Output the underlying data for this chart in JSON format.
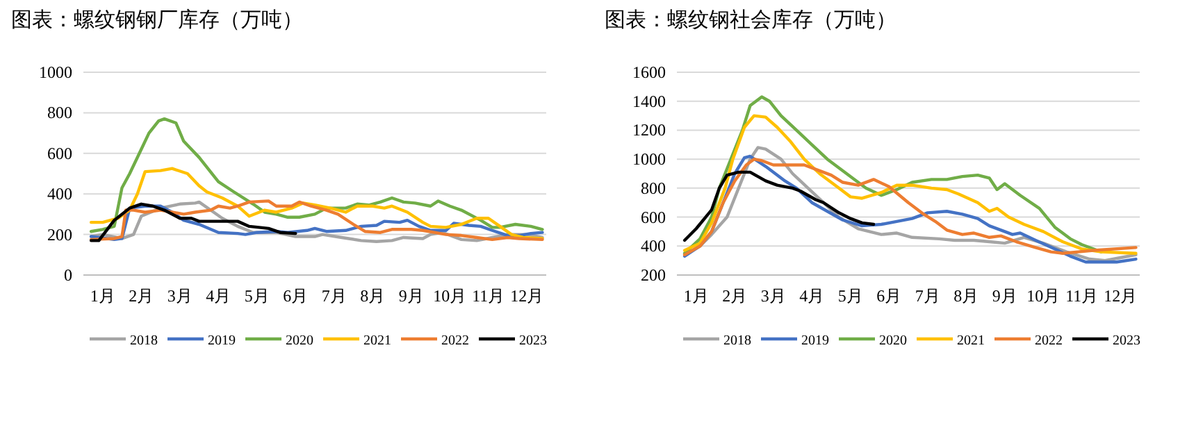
{
  "chart_data": [
    {
      "type": "line",
      "title": "图表：螺纹钢钢厂库存（万吨）",
      "xlim": [
        0,
        12
      ],
      "xticks": [
        {
          "value": 0.5,
          "label": "1月"
        },
        {
          "value": 1.5,
          "label": "2月"
        },
        {
          "value": 2.5,
          "label": "3月"
        },
        {
          "value": 3.5,
          "label": "4月"
        },
        {
          "value": 4.5,
          "label": "5月"
        },
        {
          "value": 5.5,
          "label": "6月"
        },
        {
          "value": 6.5,
          "label": "7月"
        },
        {
          "value": 7.5,
          "label": "8月"
        },
        {
          "value": 8.5,
          "label": "9月"
        },
        {
          "value": 9.5,
          "label": "10月"
        },
        {
          "value": 10.5,
          "label": "11月"
        },
        {
          "value": 11.5,
          "label": "12月"
        }
      ],
      "ylim": [
        0,
        1000
      ],
      "yticks": [
        0,
        200,
        400,
        600,
        800,
        1000
      ],
      "grid": "y",
      "legend": "bottom",
      "series": [
        {
          "name": "2018",
          "color": "#a5a5a5",
          "x": [
            0.2,
            0.5,
            1.0,
            1.3,
            1.5,
            2.0,
            2.5,
            2.9,
            3.0,
            3.3,
            3.6,
            4.0,
            4.4,
            5.0,
            5.5,
            6.0,
            6.2,
            6.7,
            7.2,
            7.6,
            8.0,
            8.3,
            8.8,
            9.0,
            9.3,
            9.8,
            10.2,
            10.6,
            11.0,
            11.5,
            11.9
          ],
          "values": [
            190,
            200,
            180,
            200,
            290,
            330,
            350,
            355,
            360,
            320,
            280,
            240,
            210,
            210,
            190,
            190,
            200,
            185,
            170,
            165,
            170,
            185,
            180,
            200,
            210,
            175,
            170,
            185,
            200,
            200,
            185
          ]
        },
        {
          "name": "2019",
          "color": "#4472c4",
          "x": [
            0.2,
            0.8,
            1.0,
            1.2,
            1.6,
            2.0,
            2.3,
            2.6,
            3.0,
            3.5,
            4.0,
            4.2,
            4.5,
            5.0,
            5.3,
            5.8,
            6.0,
            6.3,
            6.8,
            7.2,
            7.6,
            7.8,
            8.2,
            8.4,
            8.7,
            9.0,
            9.4,
            9.6,
            10.0,
            10.3,
            10.6,
            11.0,
            11.3,
            11.6,
            11.9
          ],
          "values": [
            190,
            175,
            180,
            330,
            340,
            340,
            310,
            270,
            250,
            210,
            205,
            200,
            210,
            215,
            210,
            220,
            230,
            215,
            220,
            240,
            245,
            265,
            260,
            270,
            240,
            220,
            220,
            255,
            245,
            240,
            220,
            195,
            195,
            205,
            210
          ]
        },
        {
          "name": "2020",
          "color": "#70ad47",
          "x": [
            0.2,
            0.5,
            0.8,
            1.0,
            1.2,
            1.5,
            1.7,
            1.95,
            2.1,
            2.4,
            2.6,
            3.0,
            3.5,
            3.9,
            4.4,
            4.7,
            5.0,
            5.3,
            5.6,
            6.0,
            6.3,
            6.8,
            7.1,
            7.4,
            7.7,
            8.0,
            8.3,
            8.6,
            9.0,
            9.2,
            9.5,
            9.8,
            10.3,
            10.6,
            10.8,
            11.2,
            11.6,
            11.9
          ],
          "values": [
            215,
            225,
            240,
            430,
            500,
            620,
            700,
            760,
            770,
            750,
            660,
            580,
            460,
            410,
            350,
            310,
            300,
            285,
            285,
            300,
            330,
            330,
            350,
            345,
            360,
            380,
            360,
            355,
            340,
            365,
            340,
            320,
            270,
            235,
            235,
            250,
            240,
            225
          ]
        },
        {
          "name": "2021",
          "color": "#ffc000",
          "x": [
            0.2,
            0.5,
            0.9,
            1.2,
            1.4,
            1.6,
            2.0,
            2.3,
            2.7,
            3.0,
            3.2,
            3.6,
            4.0,
            4.3,
            4.7,
            5.0,
            5.4,
            5.7,
            6.0,
            6.4,
            6.8,
            7.1,
            7.5,
            7.8,
            8.0,
            8.4,
            8.8,
            9.0,
            9.4,
            9.8,
            10.2,
            10.5,
            10.8,
            11.1,
            11.4,
            11.9
          ],
          "values": [
            260,
            260,
            280,
            320,
            400,
            510,
            515,
            525,
            500,
            440,
            410,
            380,
            340,
            290,
            320,
            310,
            330,
            355,
            345,
            330,
            310,
            340,
            340,
            330,
            340,
            310,
            260,
            240,
            235,
            250,
            280,
            280,
            240,
            200,
            185,
            180
          ]
        },
        {
          "name": "2022",
          "color": "#ed7d31",
          "x": [
            0.2,
            0.8,
            1.0,
            1.1,
            1.3,
            1.6,
            2.0,
            2.3,
            2.6,
            2.9,
            3.3,
            3.5,
            3.8,
            4.0,
            4.3,
            4.8,
            5.0,
            5.4,
            5.6,
            5.9,
            6.3,
            6.6,
            7.0,
            7.3,
            7.7,
            8.0,
            8.5,
            8.8,
            9.1,
            9.4,
            9.8,
            10.2,
            10.6,
            11.0,
            11.3,
            11.9
          ],
          "values": [
            175,
            180,
            190,
            320,
            320,
            310,
            320,
            310,
            300,
            310,
            320,
            340,
            330,
            340,
            360,
            365,
            340,
            340,
            360,
            340,
            320,
            300,
            250,
            215,
            210,
            225,
            225,
            220,
            210,
            200,
            195,
            185,
            175,
            185,
            180,
            175
          ]
        },
        {
          "name": "2023",
          "color": "#000000",
          "x": [
            0.2,
            0.4,
            0.8,
            1.2,
            1.5,
            1.8,
            2.1,
            2.5,
            2.8,
            3.0,
            3.5,
            4.0,
            4.3,
            4.8,
            5.1,
            5.5
          ],
          "values": [
            170,
            170,
            270,
            330,
            350,
            340,
            320,
            280,
            280,
            265,
            265,
            265,
            240,
            230,
            210,
            205
          ]
        }
      ]
    },
    {
      "type": "line",
      "title": "图表：螺纹钢社会库存（万吨）",
      "xlim": [
        0,
        12
      ],
      "xticks": [
        {
          "value": 0.5,
          "label": "1月"
        },
        {
          "value": 1.5,
          "label": "2月"
        },
        {
          "value": 2.5,
          "label": "3月"
        },
        {
          "value": 3.5,
          "label": "4月"
        },
        {
          "value": 4.5,
          "label": "5月"
        },
        {
          "value": 5.5,
          "label": "6月"
        },
        {
          "value": 6.5,
          "label": "7月"
        },
        {
          "value": 7.5,
          "label": "8月"
        },
        {
          "value": 8.5,
          "label": "9月"
        },
        {
          "value": 9.5,
          "label": "10月"
        },
        {
          "value": 10.5,
          "label": "11月"
        },
        {
          "value": 11.5,
          "label": "12月"
        }
      ],
      "ylim": [
        200,
        1600
      ],
      "yticks": [
        200,
        400,
        600,
        800,
        1000,
        1200,
        1400,
        1600
      ],
      "grid": "y",
      "legend": "bottom",
      "series": [
        {
          "name": "2018",
          "color": "#a5a5a5",
          "x": [
            0.2,
            0.6,
            0.9,
            1.3,
            1.6,
            1.9,
            2.1,
            2.3,
            2.7,
            3.0,
            3.4,
            3.8,
            4.2,
            4.7,
            5.3,
            5.7,
            6.1,
            6.8,
            7.2,
            7.7,
            8.1,
            8.5,
            9.0,
            9.5,
            10.1,
            10.7,
            11.1,
            11.5,
            11.9
          ],
          "values": [
            340,
            400,
            480,
            600,
            800,
            1000,
            1080,
            1070,
            1000,
            900,
            800,
            700,
            600,
            520,
            480,
            490,
            460,
            450,
            440,
            440,
            430,
            420,
            460,
            420,
            360,
            310,
            300,
            320,
            340
          ]
        },
        {
          "name": "2019",
          "color": "#4472c4",
          "x": [
            0.2,
            0.6,
            0.9,
            1.2,
            1.5,
            1.75,
            1.9,
            2.3,
            2.8,
            3.1,
            3.5,
            3.9,
            4.3,
            4.8,
            5.3,
            5.7,
            6.1,
            6.5,
            7.0,
            7.4,
            7.8,
            8.1,
            8.5,
            8.7,
            8.9,
            9.3,
            9.8,
            10.2,
            10.6,
            11.0,
            11.4,
            11.9
          ],
          "values": [
            330,
            400,
            500,
            700,
            900,
            1010,
            1020,
            950,
            850,
            800,
            700,
            640,
            580,
            540,
            550,
            570,
            590,
            630,
            640,
            620,
            590,
            540,
            500,
            480,
            490,
            440,
            380,
            330,
            290,
            290,
            290,
            310
          ]
        },
        {
          "name": "2020",
          "color": "#70ad47",
          "x": [
            0.2,
            0.6,
            0.9,
            1.1,
            1.4,
            1.7,
            1.9,
            2.2,
            2.4,
            2.7,
            3.1,
            3.5,
            3.9,
            4.4,
            4.9,
            5.3,
            5.7,
            6.1,
            6.6,
            7.0,
            7.4,
            7.8,
            8.1,
            8.3,
            8.5,
            8.9,
            9.4,
            9.8,
            10.2,
            10.5,
            11.0
          ],
          "values": [
            350,
            450,
            600,
            800,
            1000,
            1200,
            1370,
            1430,
            1400,
            1300,
            1200,
            1100,
            1000,
            900,
            800,
            750,
            790,
            840,
            860,
            860,
            880,
            890,
            870,
            790,
            830,
            750,
            660,
            530,
            450,
            410,
            360
          ]
        },
        {
          "name": "2021",
          "color": "#ffc000",
          "x": [
            0.2,
            0.6,
            0.9,
            1.25,
            1.45,
            1.75,
            2.0,
            2.3,
            2.6,
            2.95,
            3.3,
            3.7,
            4.2,
            4.5,
            4.8,
            5.3,
            5.7,
            6.1,
            6.6,
            7.0,
            7.3,
            7.8,
            8.1,
            8.3,
            8.6,
            9.0,
            9.5,
            10.0,
            10.5,
            11.0,
            11.9
          ],
          "values": [
            370,
            420,
            560,
            800,
            1000,
            1220,
            1300,
            1290,
            1220,
            1120,
            1000,
            900,
            800,
            740,
            730,
            770,
            820,
            820,
            800,
            790,
            760,
            700,
            640,
            660,
            600,
            550,
            500,
            430,
            380,
            360,
            350
          ]
        },
        {
          "name": "2022",
          "color": "#ed7d31",
          "x": [
            0.2,
            0.6,
            0.9,
            1.2,
            1.5,
            1.8,
            2.0,
            2.2,
            2.5,
            3.0,
            3.3,
            3.7,
            4.0,
            4.3,
            4.7,
            5.1,
            5.5,
            6.0,
            6.4,
            6.7,
            7.0,
            7.4,
            7.7,
            8.1,
            8.4,
            8.8,
            9.3,
            9.7,
            10.0,
            10.4,
            10.8,
            11.9
          ],
          "values": [
            340,
            400,
            500,
            700,
            850,
            960,
            1000,
            990,
            960,
            960,
            960,
            920,
            890,
            840,
            820,
            860,
            810,
            700,
            620,
            570,
            510,
            480,
            490,
            460,
            470,
            430,
            390,
            360,
            350,
            360,
            370,
            390
          ]
        },
        {
          "name": "2023",
          "color": "#000000",
          "x": [
            0.2,
            0.5,
            0.9,
            1.1,
            1.3,
            1.6,
            1.9,
            2.1,
            2.3,
            2.6,
            3.0,
            3.2,
            3.6,
            3.8,
            4.2,
            4.5,
            4.8,
            5.1
          ],
          "values": [
            440,
            520,
            650,
            800,
            890,
            910,
            910,
            880,
            850,
            820,
            800,
            780,
            720,
            700,
            630,
            590,
            560,
            550
          ]
        }
      ]
    }
  ]
}
